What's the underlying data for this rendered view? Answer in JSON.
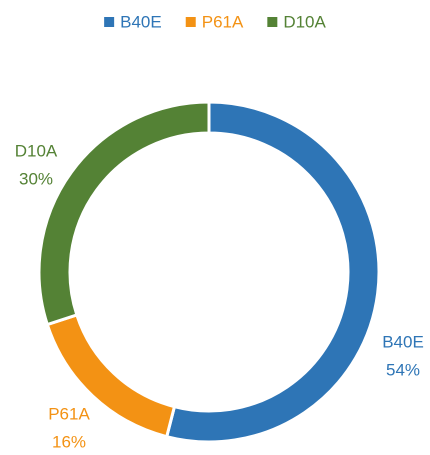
{
  "chart_data": {
    "type": "donut",
    "categories": [
      "B40E",
      "P61A",
      "D10A"
    ],
    "values": [
      54,
      16,
      30
    ],
    "value_labels": [
      "54%",
      "16%",
      "30%"
    ],
    "colors": [
      "#2e75b6",
      "#f39214",
      "#548235"
    ],
    "legend": "top"
  }
}
